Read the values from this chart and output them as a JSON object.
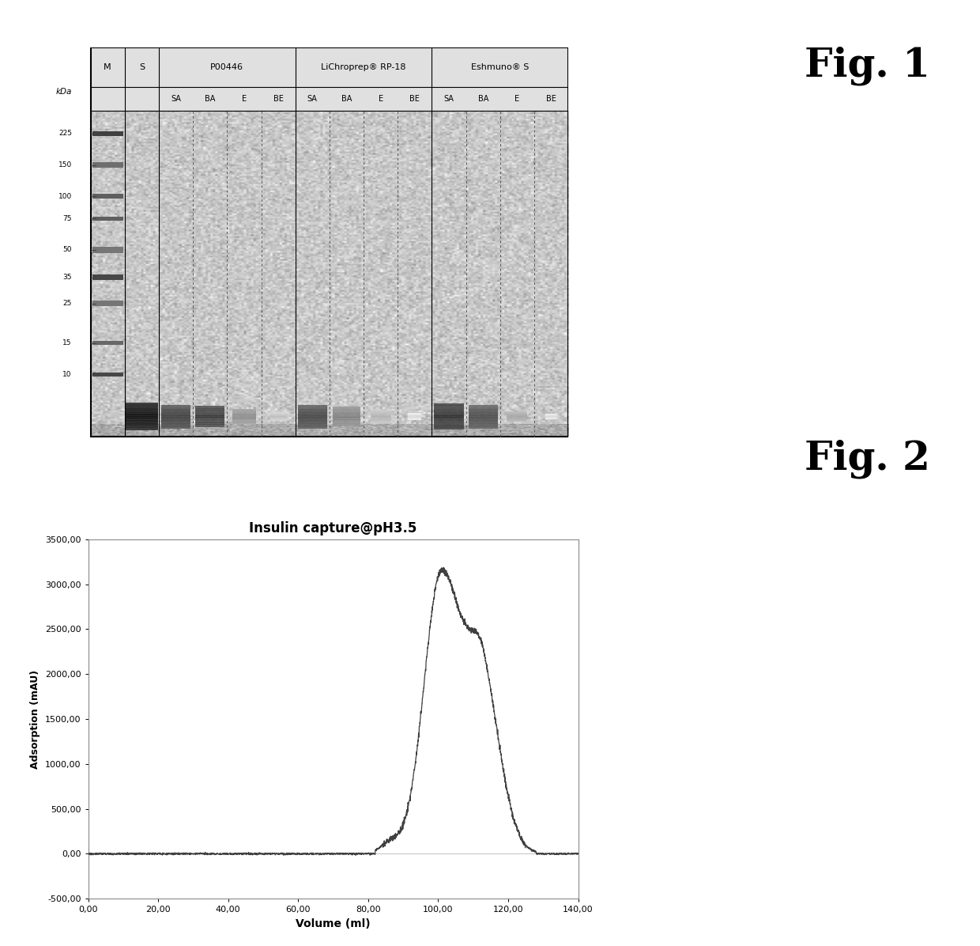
{
  "fig1_title": "Fig. 1",
  "fig2_title": "Fig. 2",
  "kda_labels": [
    225,
    150,
    100,
    75,
    50,
    35,
    25,
    15,
    10
  ],
  "col_groups": [
    {
      "label": "P00446",
      "cols": [
        "SA",
        "BA",
        "E",
        "BE"
      ]
    },
    {
      "label": "LiChroprep® RP-18",
      "cols": [
        "SA",
        "BA",
        "E",
        "BE"
      ]
    },
    {
      "label": "Eshmuno® S",
      "cols": [
        "SA",
        "BA",
        "E",
        "BE"
      ]
    }
  ],
  "chromatogram_title": "Insulin capture@pH3.5",
  "xlabel": "Volume (ml)",
  "ylabel": "Adsorption (mAU)",
  "xlim": [
    0.0,
    140.0
  ],
  "ylim": [
    -500.0,
    3500.0
  ],
  "xticks": [
    0.0,
    20.0,
    40.0,
    60.0,
    80.0,
    100.0,
    120.0,
    140.0
  ],
  "yticks": [
    -500.0,
    0.0,
    500.0,
    1000.0,
    1500.0,
    2000.0,
    2500.0,
    3000.0,
    3500.0
  ],
  "xtick_labels": [
    "0,00",
    "20,00",
    "40,00",
    "60,00",
    "80,00",
    "100,00",
    "120,00",
    "140,00"
  ],
  "ytick_labels": [
    "-500,00",
    "0,00",
    "500,00",
    "1000,00",
    "1500,00",
    "2000,00",
    "2500,00",
    "3000,00",
    "3500,00"
  ],
  "line_color": "#404040",
  "plot_bg_color": "#ffffff",
  "gel_noise_mean": 0.78,
  "gel_noise_std": 0.06,
  "band_kda": 5.5,
  "log_gel_min": 0.65,
  "log_gel_max": 2.48
}
